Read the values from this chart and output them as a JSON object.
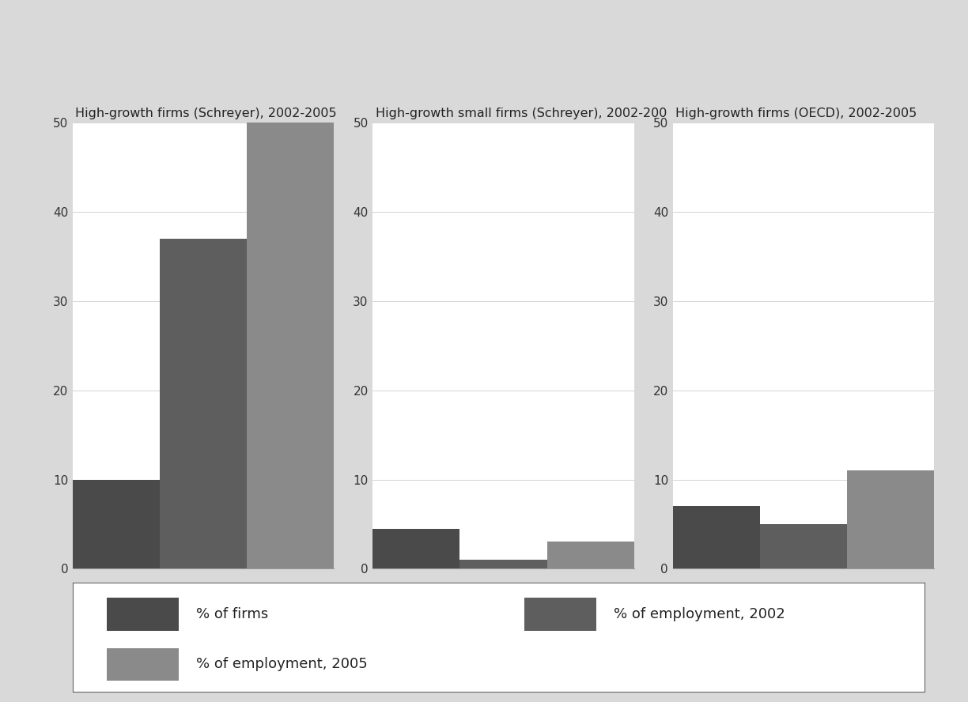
{
  "panels": [
    {
      "title": "High-growth firms (Schreyer), 2002-2005",
      "bars": [
        10,
        37,
        50
      ],
      "ylim": [
        0,
        50
      ]
    },
    {
      "title": "High-growth small firms (Schreyer), 2002-200",
      "bars": [
        4.5,
        1,
        3
      ],
      "ylim": [
        0,
        50
      ]
    },
    {
      "title": "High-growth firms (OECD), 2002-2005",
      "bars": [
        7,
        5,
        11
      ],
      "ylim": [
        0,
        50
      ]
    }
  ],
  "bar_labels": [
    "% of firms",
    "% of employment, 2002",
    "% of employment, 2005"
  ],
  "bar_colors": [
    "#4a4a4a",
    "#5e5e5e",
    "#8a8a8a"
  ],
  "yticks": [
    0,
    10,
    20,
    30,
    40,
    50
  ],
  "background_color": "#d9d9d9",
  "plot_background_color": "#ffffff",
  "panel_background_color": "#f0f0f0",
  "bar_width": 1.0,
  "legend_fontsize": 13,
  "title_fontsize": 11.5
}
